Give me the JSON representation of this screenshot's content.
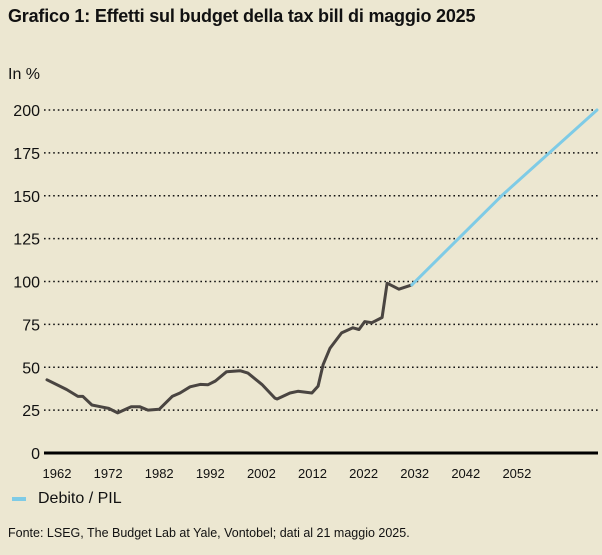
{
  "chart_data": {
    "type": "line",
    "title": "Grafico 1: Effetti sul budget della tax bill di maggio 2025",
    "ylabel": "In %",
    "xlabel": "",
    "ylim": [
      0,
      200
    ],
    "xlim": [
      1960,
      2058
    ],
    "yticks": [
      "0",
      "25",
      "50",
      "75",
      "100",
      "125",
      "150",
      "175",
      "200"
    ],
    "xticks": [
      "1962",
      "1972",
      "1982",
      "1992",
      "2002",
      "2012",
      "2022",
      "2032",
      "2042",
      "2052"
    ],
    "grid": true,
    "legend_position": "bottom-left",
    "series": [
      {
        "color": "#4a4541",
        "points": [
          [
            1960,
            42.7
          ],
          [
            1963.5,
            37
          ],
          [
            1965.5,
            33
          ],
          [
            1966.4,
            33
          ],
          [
            1968,
            28
          ],
          [
            1969.5,
            27
          ],
          [
            1971,
            26
          ],
          [
            1972.6,
            23.4
          ],
          [
            1975,
            27
          ],
          [
            1976.5,
            27
          ],
          [
            1978,
            25
          ],
          [
            1980,
            25.5
          ],
          [
            1982.3,
            33
          ],
          [
            1983.7,
            35
          ],
          [
            1985.5,
            38.6
          ],
          [
            1987.3,
            40
          ],
          [
            1988.7,
            39.8
          ],
          [
            1990,
            42
          ],
          [
            1992,
            47.4
          ],
          [
            1994.4,
            48
          ],
          [
            1995.8,
            46.6
          ],
          [
            1998.3,
            40
          ],
          [
            2000.6,
            32
          ],
          [
            2001,
            31.5
          ],
          [
            2003.3,
            35
          ],
          [
            2004.7,
            36
          ],
          [
            2007.2,
            35
          ],
          [
            2008.3,
            39
          ],
          [
            2009.2,
            51.5
          ],
          [
            2010.4,
            61
          ],
          [
            2012.5,
            70
          ],
          [
            2014.5,
            73
          ],
          [
            2015.6,
            72
          ],
          [
            2016.6,
            76.6
          ],
          [
            2017.9,
            76
          ],
          [
            2019.7,
            79
          ],
          [
            2020.6,
            99
          ],
          [
            2022.7,
            95.5
          ],
          [
            2025,
            98
          ]
        ]
      },
      {
        "name": "Debito / PIL",
        "color": "#7ecbe6",
        "points": [
          [
            2025,
            98
          ],
          [
            2041,
            150
          ],
          [
            2058,
            200
          ]
        ]
      }
    ]
  },
  "source": "Fonte: LSEG, The Budget Lab at Yale, Vontobel; dati al 21 maggio 2025."
}
